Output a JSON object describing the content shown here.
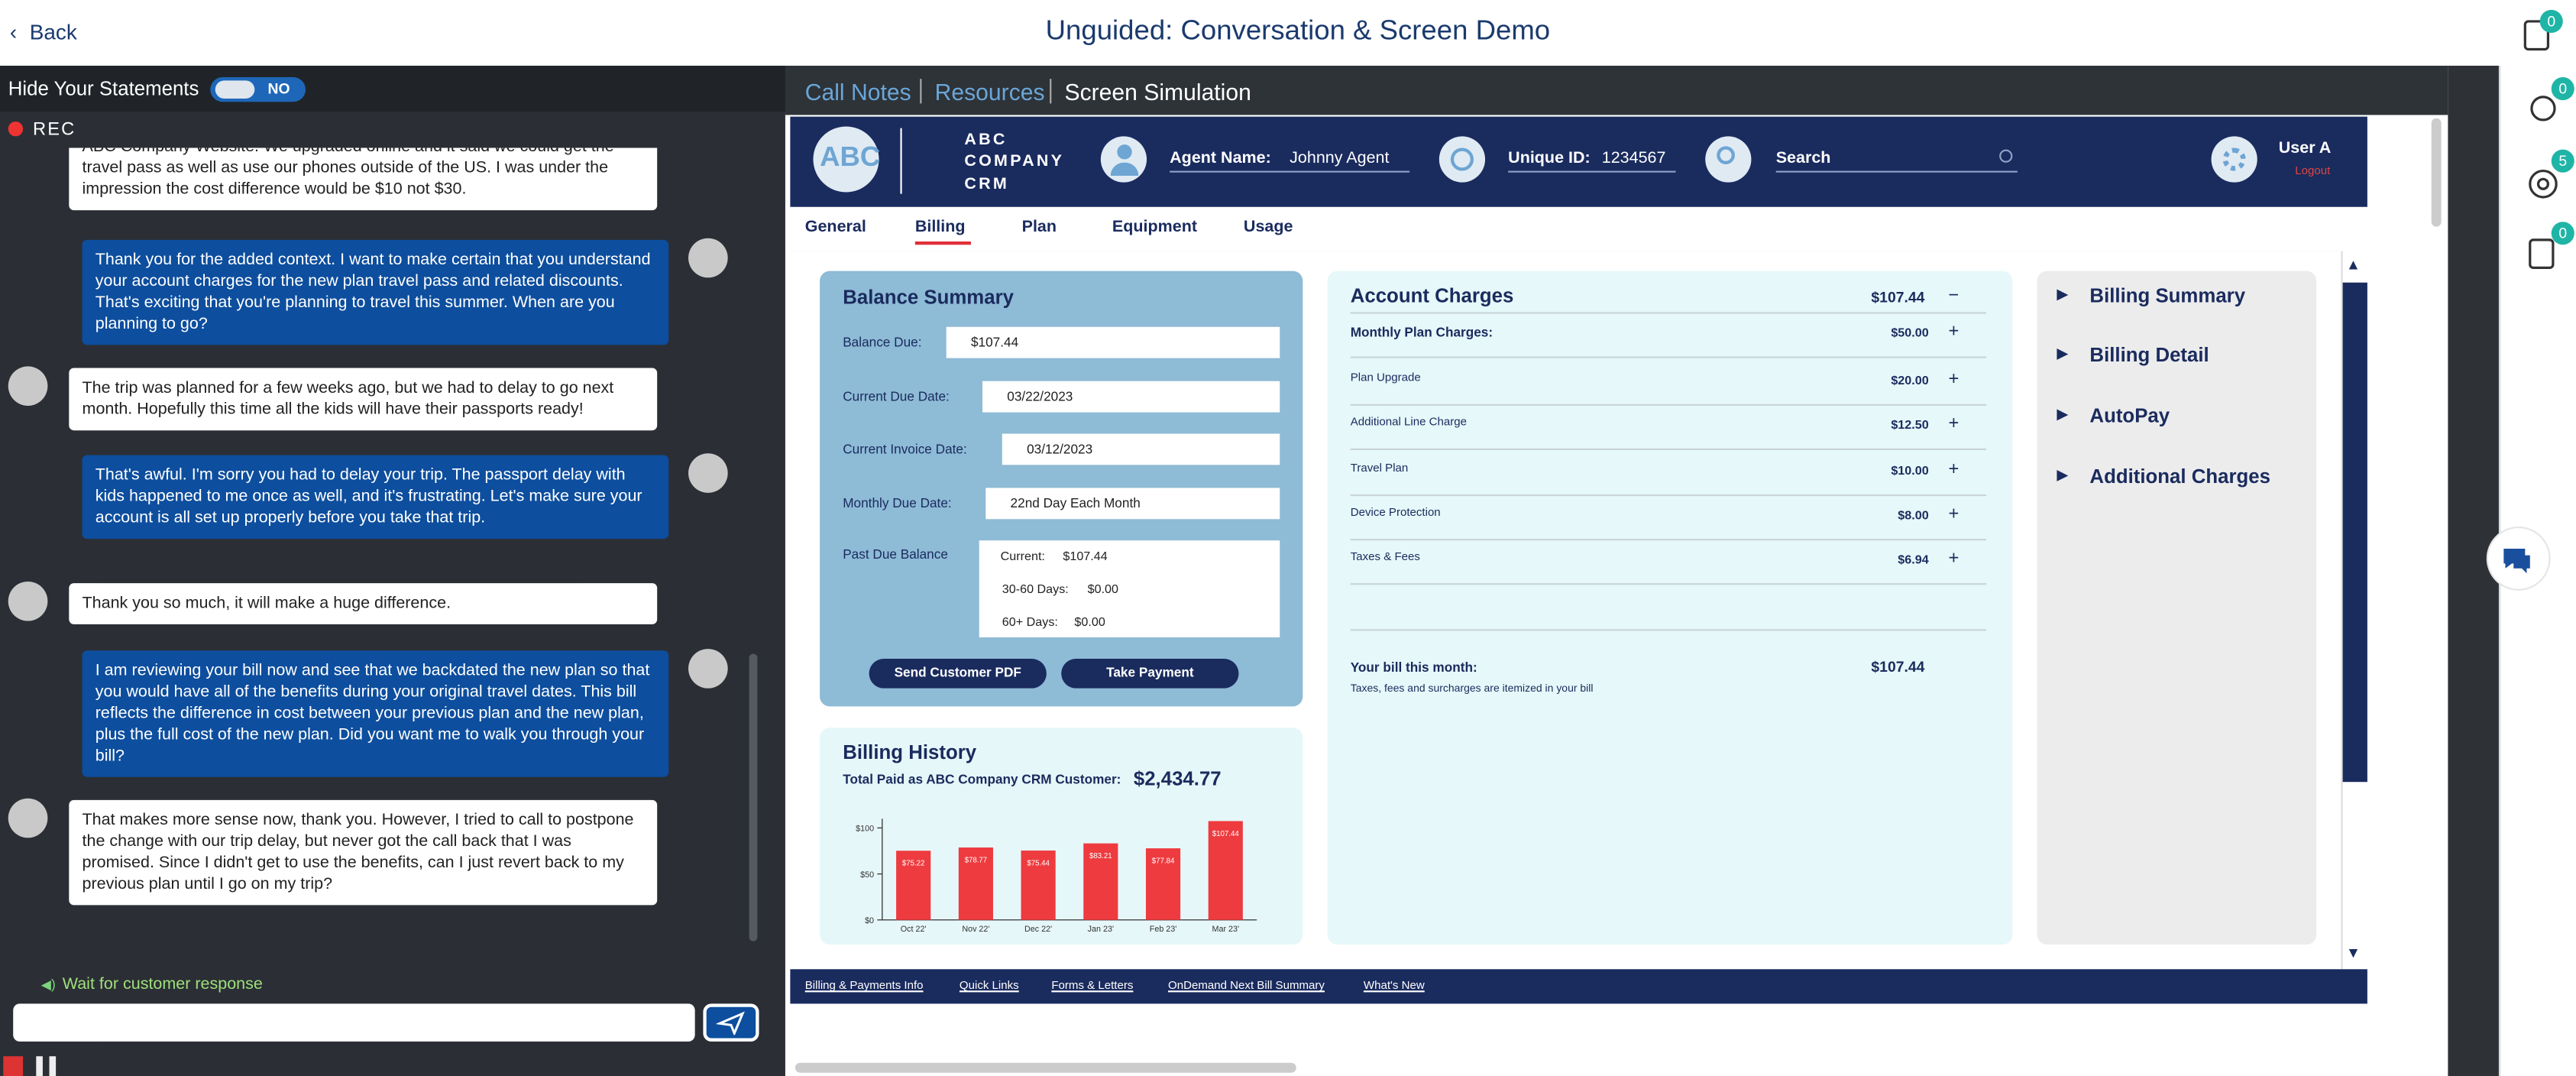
{
  "header": {
    "back": "Back",
    "title": "Unguided: Conversation & Screen Demo",
    "badges": [
      "0",
      "0",
      "5",
      "0"
    ]
  },
  "conversation": {
    "hide_label": "Hide Your Statements",
    "toggle": "NO",
    "rec": "REC",
    "messages": [
      "ABC Company Website. We upgraded online and it said we could get the travel pass as well as use our phones outside of the US. I was under the impression the cost difference would be $10 not $30.",
      "Thank you for the added context. I want to make certain that you understand your account charges for the new plan travel pass and related discounts. That's exciting that you're planning to travel this summer. When are you planning to go?",
      "The trip was planned for a few weeks ago, but we had to delay to go next month. Hopefully this time all the kids will have their passports ready!",
      "That's awful. I'm sorry you had to delay your trip. The passport delay with kids happened to me once as well, and it's frustrating. Let's make sure your account is all set up properly before you take that trip.",
      "Thank you so much, it will make a huge difference.",
      "I am reviewing your bill now and see that we backdated the new plan so that you would have all of the benefits during your original travel dates. This bill reflects the difference in cost between your previous plan and the new plan, plus the full cost of the new plan. Did you want me to walk you through your bill?",
      "That makes more sense now, thank you. However, I tried to call to postpone the change with our trip delay, but never got the call back that I was promised. Since I didn't get to use the benefits, can I just revert back to my previous plan until I go on my trip?"
    ],
    "status": "Wait for customer response"
  },
  "tabs": [
    "Call Notes",
    "Resources",
    "Screen Simulation"
  ],
  "crm": {
    "logo": "ABC",
    "company": [
      "ABC",
      "COMPANY",
      "CRM"
    ],
    "agent_label": "Agent Name:",
    "agent": "Johnny Agent",
    "id_label": "Unique ID:",
    "id": "1234567",
    "search": "Search",
    "user": "User A",
    "logout": "Logout",
    "nav": [
      "General",
      "Billing",
      "Plan",
      "Equipment",
      "Usage"
    ],
    "balance_summary": {
      "title": "Balance Summary",
      "fields": [
        {
          "label": "Balance Due:",
          "value": "$107.44"
        },
        {
          "label": "Current Due Date:",
          "value": "03/22/2023"
        },
        {
          "label": "Current Invoice Date:",
          "value": "03/12/2023"
        },
        {
          "label": "Monthly Due Date:",
          "value": "22nd Day Each Month"
        }
      ],
      "past_due_label": "Past Due Balance",
      "past_due": [
        {
          "label": "Current:",
          "value": "$107.44"
        },
        {
          "label": "30-60 Days:",
          "value": "$0.00"
        },
        {
          "label": "60+ Days:",
          "value": "$0.00"
        }
      ],
      "buttons": [
        "Send Customer PDF",
        "Take Payment"
      ]
    },
    "billing_history": {
      "title": "Billing History",
      "total_label": "Total Paid as ABC Company CRM Customer:",
      "total": "$2,434.77",
      "chart": {
        "type": "bar",
        "categories": [
          "Oct 22'",
          "Nov 22'",
          "Dec 22'",
          "Jan 23'",
          "Feb 23'",
          "Mar 23'"
        ],
        "values": [
          75.22,
          78.77,
          75.44,
          83.21,
          77.84,
          107.44
        ],
        "value_labels": [
          "$75.22",
          "$78.77",
          "$75.44",
          "$83.21",
          "$77.84",
          "$107.44"
        ],
        "color": "#ee3b3f",
        "ylim": [
          0,
          110
        ],
        "yticks": [
          {
            "value": 0,
            "label": "$0"
          },
          {
            "value": 50,
            "label": "$50"
          },
          {
            "value": 100,
            "label": "$100"
          }
        ]
      }
    },
    "account_charges": {
      "title": "Account Charges",
      "total": "$107.44",
      "rows": [
        {
          "label": "Monthly Plan Charges:",
          "amount": "$50.00"
        },
        {
          "label": "Plan Upgrade",
          "amount": "$20.00"
        },
        {
          "label": "Additional Line Charge",
          "amount": "$12.50"
        },
        {
          "label": "Travel Plan",
          "amount": "$10.00"
        },
        {
          "label": "Device Protection",
          "amount": "$8.00"
        },
        {
          "label": "Taxes & Fees",
          "amount": "$6.94"
        }
      ],
      "bill_label": "Your bill this month:",
      "bill": "$107.44",
      "note": "Taxes, fees and surcharges are itemized in your bill"
    },
    "side_menu": [
      "Billing Summary",
      "Billing Detail",
      "AutoPay",
      "Additional Charges"
    ],
    "footer_links": [
      "Billing & Payments Info",
      "Quick Links",
      "Forms & Letters",
      "OnDemand Next Bill Summary",
      "What's New"
    ]
  }
}
